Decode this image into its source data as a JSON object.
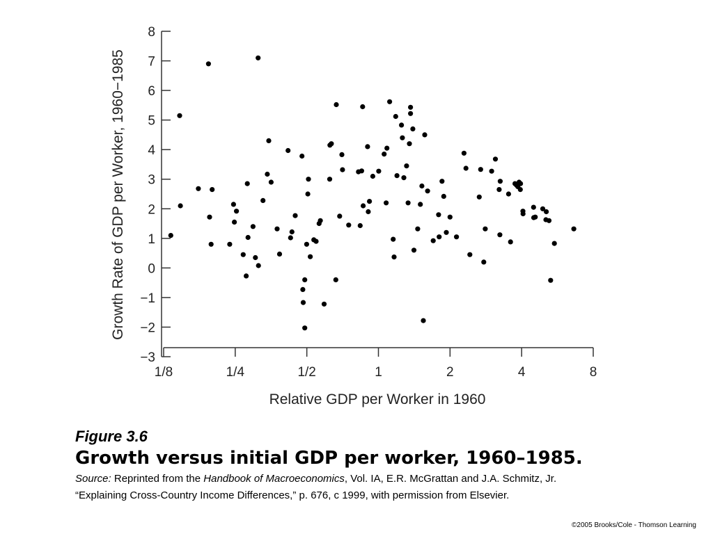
{
  "chart_data": {
    "type": "scatter",
    "xlabel": "Relative GDP per Worker in 1960",
    "ylabel": "Growth Rate of GDP per Worker, 1960−1985",
    "x_scale": "log2",
    "xlim": [
      0.125,
      8
    ],
    "ylim": [
      -3,
      8
    ],
    "x_ticks": [
      0.125,
      0.25,
      0.5,
      1,
      2,
      4,
      8
    ],
    "x_tick_labels": [
      "1/8",
      "1/4",
      "1/2",
      "1",
      "2",
      "4",
      "8"
    ],
    "y_ticks": [
      8,
      7,
      6,
      5,
      4,
      3,
      2,
      1,
      0,
      -1,
      -2,
      -3
    ],
    "y_tick_labels": [
      "8",
      "7",
      "6",
      "5",
      "4",
      "3",
      "2",
      "1",
      "0",
      "−1",
      "−2",
      "−3"
    ],
    "grid": false,
    "points": [
      [
        0.134,
        1.1
      ],
      [
        0.146,
        5.15
      ],
      [
        0.147,
        2.1
      ],
      [
        0.175,
        2.68
      ],
      [
        0.193,
        6.9
      ],
      [
        0.195,
        1.72
      ],
      [
        0.198,
        0.8
      ],
      [
        0.2,
        2.65
      ],
      [
        0.237,
        0.8
      ],
      [
        0.246,
        2.15
      ],
      [
        0.248,
        1.55
      ],
      [
        0.253,
        1.92
      ],
      [
        0.27,
        0.45
      ],
      [
        0.278,
        -0.27
      ],
      [
        0.281,
        2.85
      ],
      [
        0.283,
        1.03
      ],
      [
        0.297,
        1.4
      ],
      [
        0.304,
        0.35
      ],
      [
        0.312,
        7.1
      ],
      [
        0.313,
        0.08
      ],
      [
        0.327,
        2.28
      ],
      [
        0.341,
        3.17
      ],
      [
        0.346,
        4.3
      ],
      [
        0.354,
        2.9
      ],
      [
        0.375,
        1.32
      ],
      [
        0.384,
        0.47
      ],
      [
        0.417,
        3.97
      ],
      [
        0.427,
        1.02
      ],
      [
        0.433,
        1.22
      ],
      [
        0.447,
        1.77
      ],
      [
        0.477,
        3.78
      ],
      [
        0.481,
        -0.73
      ],
      [
        0.483,
        -1.17
      ],
      [
        0.49,
        -0.4
      ],
      [
        0.49,
        -2.03
      ],
      [
        0.499,
        0.8
      ],
      [
        0.505,
        2.5
      ],
      [
        0.508,
        3.0
      ],
      [
        0.517,
        0.38
      ],
      [
        0.535,
        0.95
      ],
      [
        0.547,
        0.9
      ],
      [
        0.563,
        1.5
      ],
      [
        0.57,
        1.6
      ],
      [
        0.591,
        -1.22
      ],
      [
        0.624,
        3.0
      ],
      [
        0.625,
        4.15
      ],
      [
        0.634,
        4.2
      ],
      [
        0.665,
        5.52
      ],
      [
        0.662,
        -0.4
      ],
      [
        0.687,
        1.75
      ],
      [
        0.702,
        3.83
      ],
      [
        0.706,
        3.32
      ],
      [
        0.75,
        1.45
      ],
      [
        0.824,
        3.25
      ],
      [
        0.838,
        1.43
      ],
      [
        0.85,
        3.28
      ],
      [
        0.858,
        5.45
      ],
      [
        0.863,
        2.1
      ],
      [
        0.9,
        4.1
      ],
      [
        0.906,
        1.9
      ],
      [
        0.917,
        2.25
      ],
      [
        0.947,
        3.1
      ],
      [
        1.003,
        3.27
      ],
      [
        1.057,
        3.85
      ],
      [
        1.086,
        4.05
      ],
      [
        1.078,
        2.2
      ],
      [
        1.115,
        5.62
      ],
      [
        1.154,
        0.97
      ],
      [
        1.164,
        0.37
      ],
      [
        1.182,
        5.12
      ],
      [
        1.196,
        3.12
      ],
      [
        1.25,
        4.83
      ],
      [
        1.261,
        4.4
      ],
      [
        1.279,
        3.05
      ],
      [
        1.313,
        3.45
      ],
      [
        1.333,
        2.2
      ],
      [
        1.35,
        4.2
      ],
      [
        1.364,
        5.43
      ],
      [
        1.364,
        5.22
      ],
      [
        1.395,
        4.7
      ],
      [
        1.41,
        0.6
      ],
      [
        1.463,
        1.32
      ],
      [
        1.5,
        2.15
      ],
      [
        1.523,
        2.77
      ],
      [
        1.545,
        -1.78
      ],
      [
        1.566,
        4.5
      ],
      [
        1.609,
        2.6
      ],
      [
        1.7,
        0.92
      ],
      [
        1.79,
        1.8
      ],
      [
        1.8,
        1.05
      ],
      [
        1.851,
        2.93
      ],
      [
        1.882,
        2.42
      ],
      [
        1.93,
        1.2
      ],
      [
        2.0,
        1.72
      ],
      [
        2.129,
        1.05
      ],
      [
        2.29,
        3.88
      ],
      [
        2.333,
        3.37
      ],
      [
        2.423,
        0.45
      ],
      [
        2.654,
        2.4
      ],
      [
        2.69,
        3.33
      ],
      [
        2.772,
        0.2
      ],
      [
        2.812,
        1.32
      ],
      [
        2.992,
        3.27
      ],
      [
        3.103,
        3.68
      ],
      [
        3.219,
        2.65
      ],
      [
        3.24,
        1.12
      ],
      [
        3.251,
        2.93
      ],
      [
        3.525,
        2.5
      ],
      [
        3.593,
        0.88
      ],
      [
        3.75,
        2.85
      ],
      [
        3.806,
        2.8
      ],
      [
        3.854,
        2.75
      ],
      [
        3.902,
        2.9
      ],
      [
        3.958,
        2.85
      ],
      [
        3.95,
        2.65
      ],
      [
        4.051,
        1.92
      ],
      [
        4.054,
        1.83
      ],
      [
        4.49,
        2.05
      ],
      [
        4.497,
        1.7
      ],
      [
        4.563,
        1.72
      ],
      [
        4.906,
        2.0
      ],
      [
        5.06,
        1.63
      ],
      [
        5.079,
        1.9
      ],
      [
        5.213,
        1.6
      ],
      [
        5.296,
        -0.42
      ],
      [
        5.491,
        0.83
      ],
      [
        6.629,
        1.32
      ]
    ]
  },
  "caption": {
    "figure_number": "Figure 3.6",
    "title": "Growth versus initial GDP per worker, 1960–1985.",
    "source_label": "Source:",
    "source_pre": " Reprinted from the ",
    "source_book": "Handbook of Macroeconomics",
    "source_post": ", Vol. IA, E.R. McGrattan and J.A. Schmitz, Jr.",
    "source_line2": "“Explaining Cross-Country Income Differences,” p. 676, c 1999, with permission from Elsevier."
  },
  "copyright": "©2005 Brooks/Cole - Thomson Learning"
}
